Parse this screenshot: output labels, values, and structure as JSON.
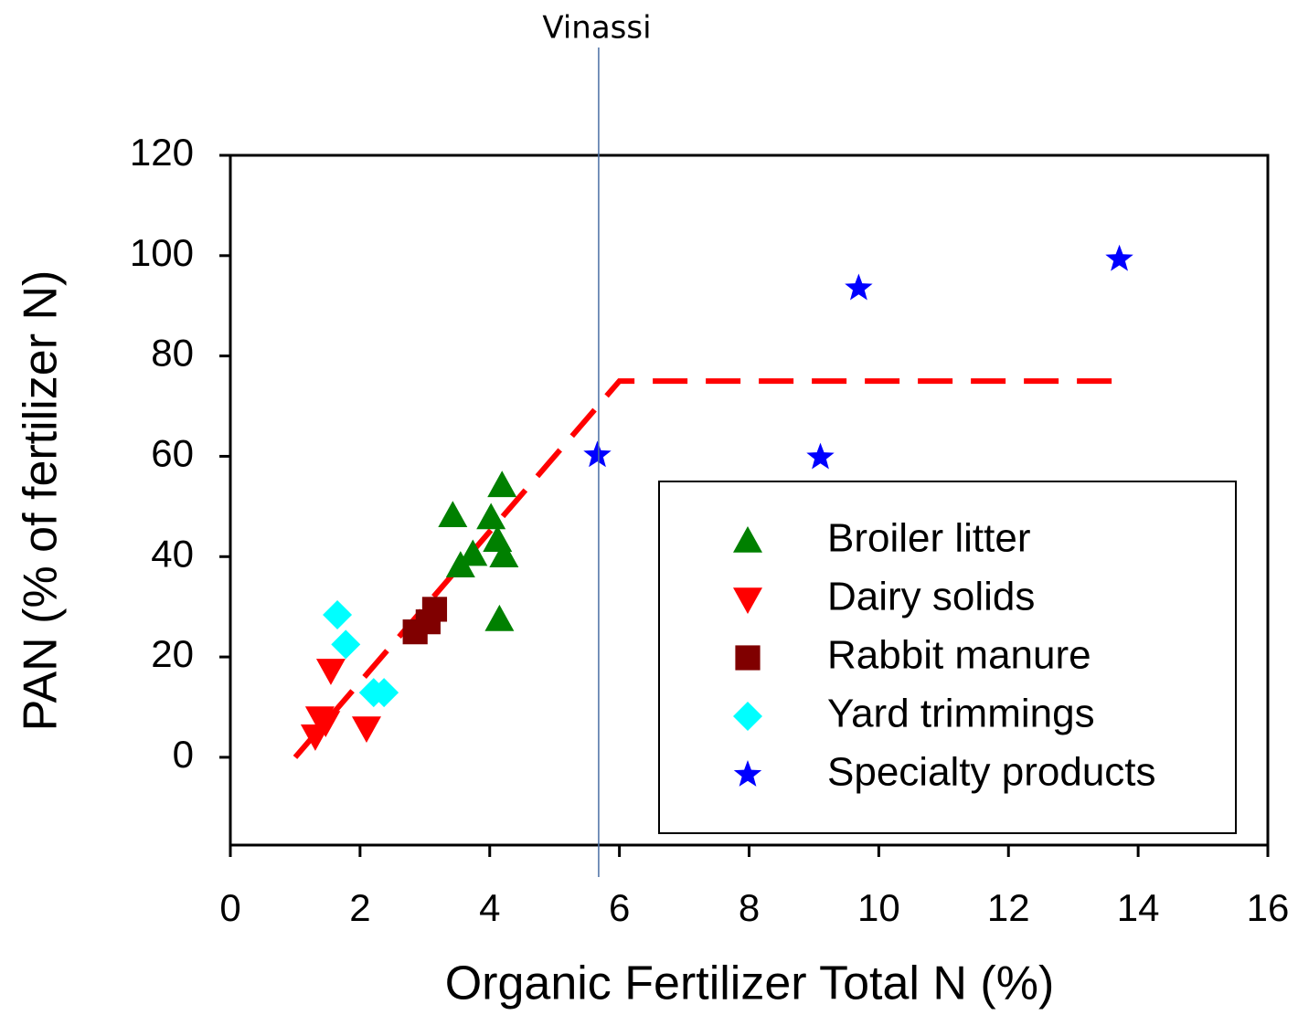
{
  "chart_data": {
    "type": "scatter",
    "xlabel": "Organic Fertilizer Total N (%)",
    "ylabel": "PAN (% of fertilizer N)",
    "xlim": [
      0,
      16
    ],
    "ylim": [
      -17.5,
      120
    ],
    "xticks": [
      0,
      2,
      4,
      6,
      8,
      10,
      12,
      14,
      16
    ],
    "yticks": [
      0,
      20,
      40,
      60,
      80,
      100,
      120
    ],
    "series": [
      {
        "name": "Broiler litter",
        "color": "#008000",
        "marker": "triangle-up",
        "x": [
          3.43,
          4.02,
          4.19,
          3.55,
          3.74,
          4.12,
          4.22,
          4.15
        ],
        "values": [
          48.2,
          47.8,
          54.2,
          38.2,
          40.5,
          43.3,
          40.2,
          27.5
        ]
      },
      {
        "name": "Dairy solids",
        "color": "#ff0000",
        "marker": "triangle-down",
        "x": [
          1.55,
          1.38,
          1.47,
          1.31,
          2.1
        ],
        "values": [
          17.3,
          7.8,
          6.9,
          4.2,
          5.8
        ]
      },
      {
        "name": "Rabbit manure",
        "color": "#800000",
        "marker": "square",
        "x": [
          2.85,
          3.15,
          3.05
        ],
        "values": [
          25,
          29.5,
          27
        ]
      },
      {
        "name": "Yard trimmings",
        "color": "#00ffff",
        "marker": "diamond",
        "x": [
          1.65,
          1.78,
          2.21,
          2.37
        ],
        "values": [
          28.4,
          22.5,
          12.9,
          12.9
        ]
      },
      {
        "name": "Specialty products",
        "color": "#0000ff",
        "marker": "star",
        "x": [
          5.66,
          9.1,
          9.69,
          13.71
        ],
        "values": [
          60.2,
          59.8,
          93.5,
          99.3
        ]
      }
    ],
    "fit_line": {
      "color": "#ff0000",
      "x": [
        1,
        6,
        13.8
      ],
      "values": [
        0,
        75,
        75
      ]
    },
    "annotation": {
      "text": "Vinassi",
      "x": 5.68,
      "color": "#4a6fa5"
    },
    "legend": "lower right"
  }
}
